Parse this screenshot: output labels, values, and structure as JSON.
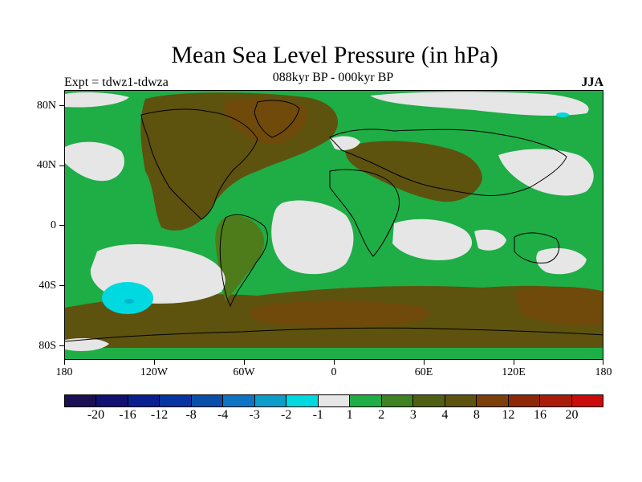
{
  "title": "Mean Sea Level Pressure (in hPa)",
  "subtitle_left": "Expt = tdwz1-tdwza",
  "subtitle_center": "088kyr BP - 000kyr BP",
  "subtitle_right": "JJA",
  "lat_ticks": [
    "80N",
    "40N",
    "0",
    "40S",
    "80S"
  ],
  "lon_ticks": [
    "180",
    "120W",
    "60W",
    "0",
    "60E",
    "120E",
    "180"
  ],
  "colors": {
    "ocean_main": "#1fad46",
    "land_brown": "#5e520f",
    "land_dark": "#6f4a0b",
    "olive": "#4f7c1a",
    "neutral": "#e6e6e6",
    "cyan": "#00d9e0",
    "cyan_dark": "#00b5d0",
    "coastline": "#000000"
  },
  "legend": {
    "colors": [
      "#1a1053",
      "#121070",
      "#0b2090",
      "#0634a0",
      "#0a4faa",
      "#0f74c4",
      "#0b9ec9",
      "#00d9e0",
      "#e6e6e6",
      "#1fad46",
      "#3f8224",
      "#4f6015",
      "#5e520f",
      "#7d3f09",
      "#8f2807",
      "#ab1b0a",
      "#cb0c0c"
    ],
    "labels": [
      "-20",
      "-16",
      "-12",
      "-8",
      "-4",
      "-3",
      "-2",
      "-1",
      "1",
      "2",
      "3",
      "4",
      "8",
      "12",
      "16",
      "20"
    ]
  }
}
